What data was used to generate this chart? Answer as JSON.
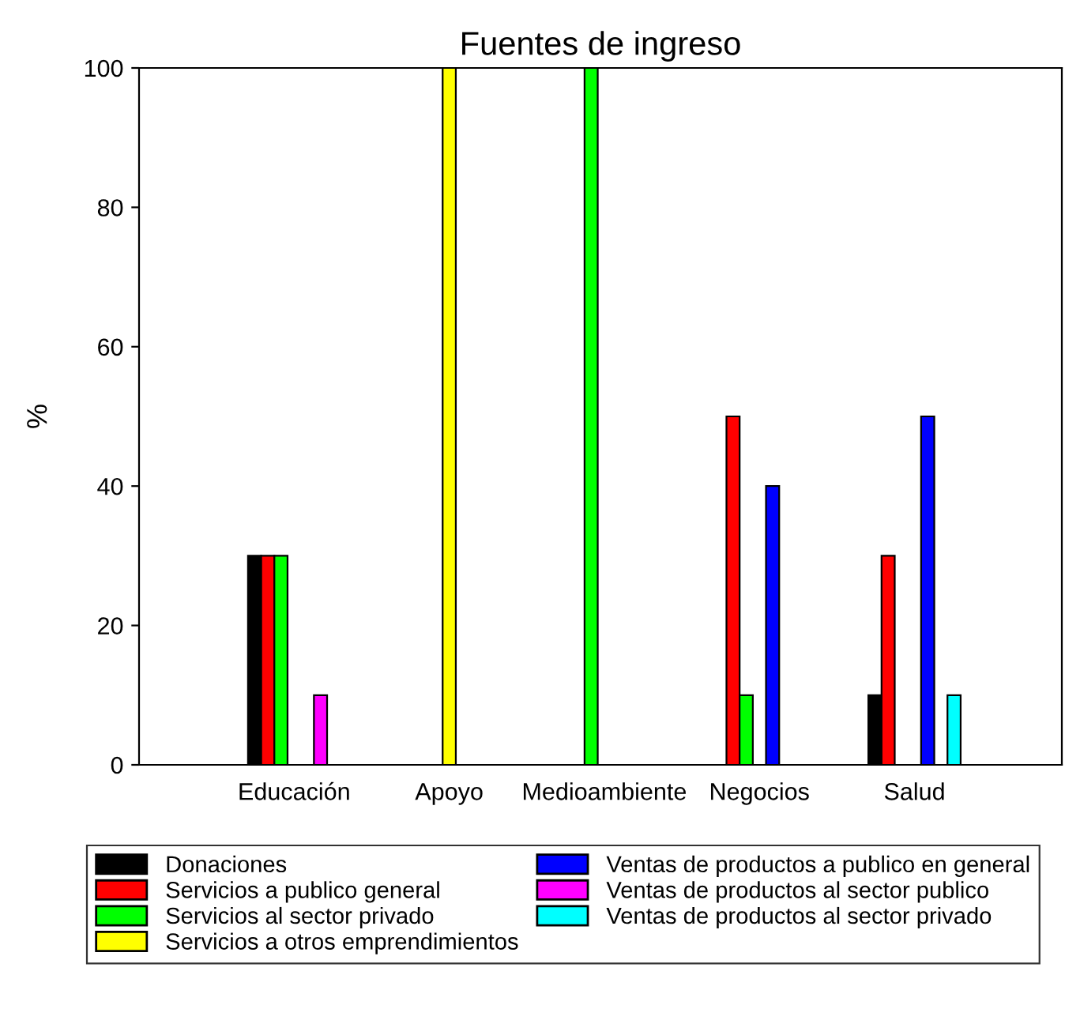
{
  "chart_data": {
    "type": "bar",
    "title": "Fuentes de ingreso",
    "ylabel": "%",
    "categories": [
      "Educación",
      "Apoyo",
      "Medioambiente",
      "Negocios",
      "Salud"
    ],
    "series": [
      {
        "name": "Donaciones",
        "color": "#000000",
        "values": [
          30,
          null,
          null,
          null,
          10
        ]
      },
      {
        "name": "Servicios a publico general",
        "color": "#ff0000",
        "values": [
          30,
          null,
          null,
          50,
          30
        ]
      },
      {
        "name": "Servicios al sector privado",
        "color": "#00ff00",
        "values": [
          30,
          null,
          100,
          10,
          null
        ]
      },
      {
        "name": "Servicios a otros emprendimientos",
        "color": "#ffff00",
        "values": [
          null,
          100,
          null,
          null,
          null
        ]
      },
      {
        "name": "Ventas de productos a publico en general",
        "color": "#0000ff",
        "values": [
          null,
          null,
          null,
          40,
          50
        ]
      },
      {
        "name": "Ventas de productos al sector publico",
        "color": "#ff00ff",
        "values": [
          10,
          null,
          null,
          null,
          null
        ]
      },
      {
        "name": "Ventas de productos al sector privado",
        "color": "#00ffff",
        "values": [
          null,
          null,
          null,
          null,
          10
        ]
      }
    ],
    "ylim": [
      0,
      100
    ],
    "yticks": [
      0,
      20,
      40,
      60,
      80,
      100
    ],
    "grid": false,
    "legend": "bottom"
  }
}
